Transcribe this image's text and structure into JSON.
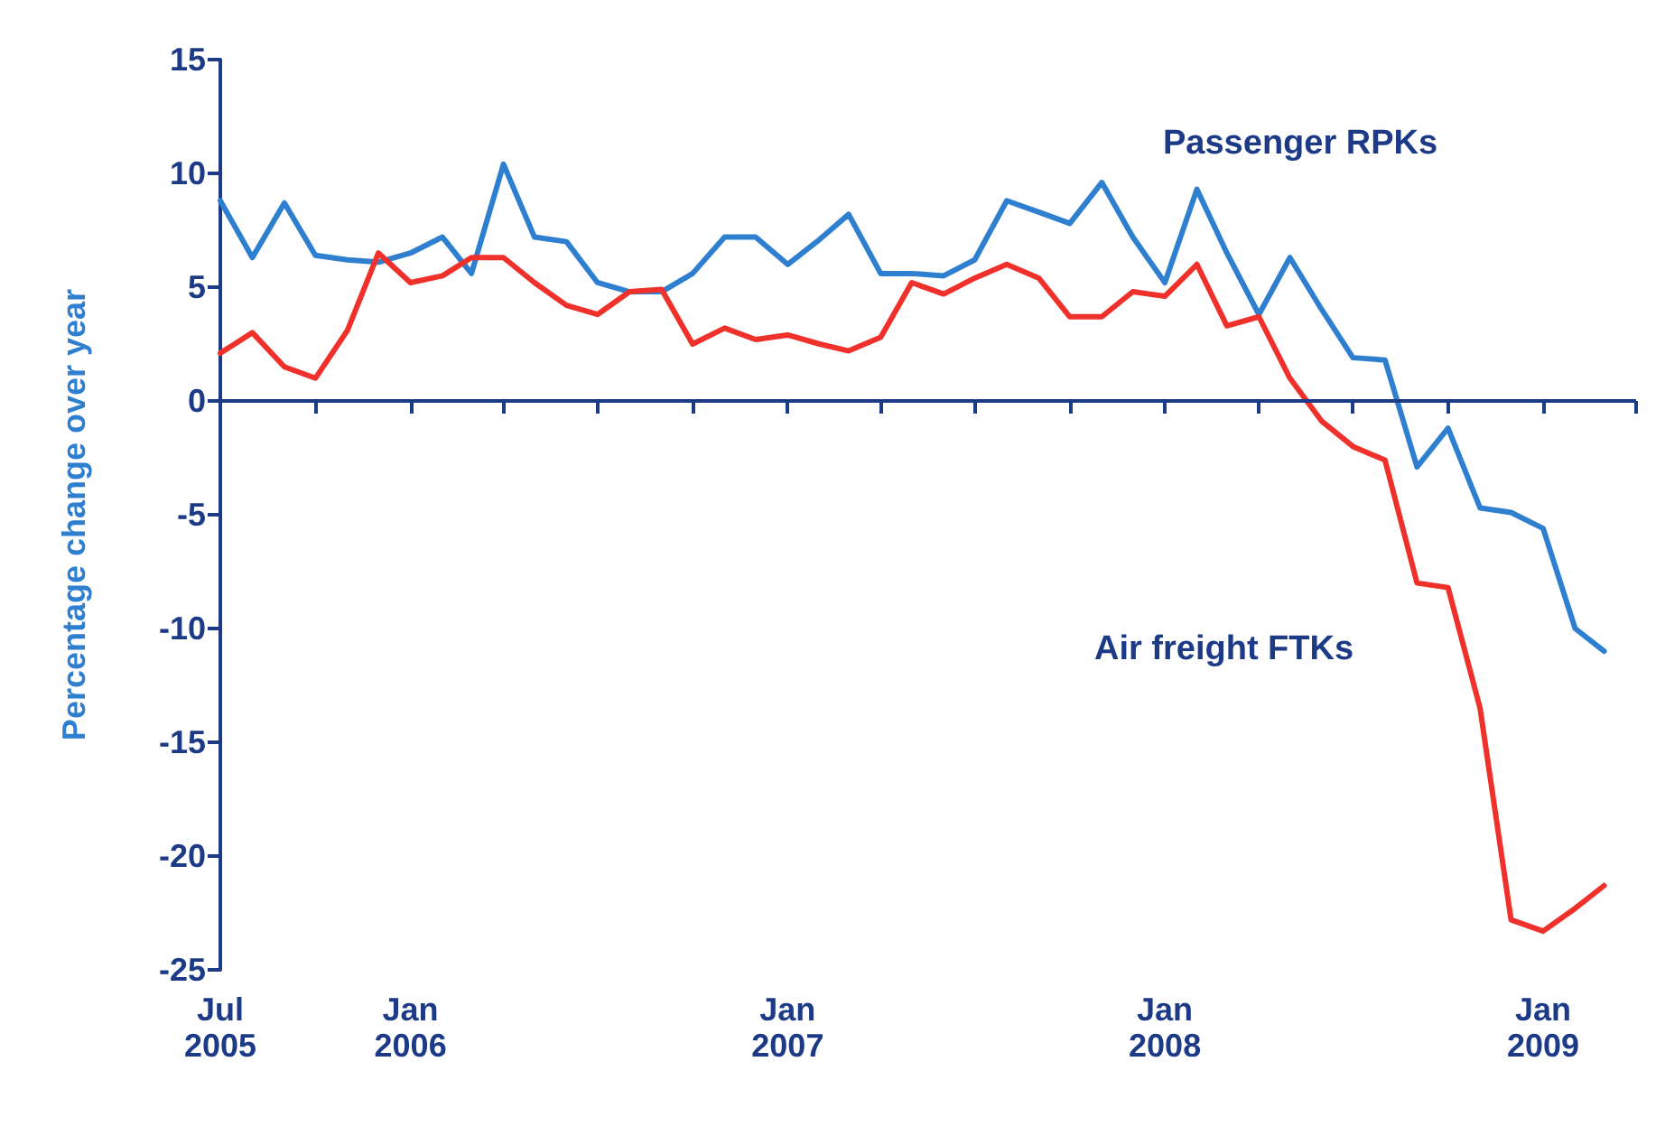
{
  "chart_data": {
    "type": "line",
    "ylabel": "Percentage change over year",
    "x": [
      "2005-07",
      "2005-08",
      "2005-09",
      "2005-10",
      "2005-11",
      "2005-12",
      "2006-01",
      "2006-02",
      "2006-03",
      "2006-04",
      "2006-05",
      "2006-06",
      "2006-07",
      "2006-08",
      "2006-09",
      "2006-10",
      "2006-11",
      "2006-12",
      "2007-01",
      "2007-02",
      "2007-03",
      "2007-04",
      "2007-05",
      "2007-06",
      "2007-07",
      "2007-08",
      "2007-09",
      "2007-10",
      "2007-11",
      "2007-12",
      "2008-01",
      "2008-02",
      "2008-03",
      "2008-04",
      "2008-05",
      "2008-06",
      "2008-07",
      "2008-08",
      "2008-09",
      "2008-10",
      "2008-11",
      "2008-12",
      "2009-01",
      "2009-02",
      "2009-03"
    ],
    "series": [
      {
        "name": "Passenger RPKs",
        "color": "#2f7fd0",
        "values": [
          8.8,
          6.3,
          8.7,
          6.4,
          6.2,
          6.1,
          6.5,
          7.2,
          5.6,
          10.4,
          7.2,
          7.0,
          5.2,
          4.8,
          4.8,
          5.6,
          7.2,
          7.2,
          6.0,
          7.1,
          8.2,
          5.6,
          5.6,
          5.5,
          6.2,
          8.8,
          8.3,
          7.8,
          9.6,
          7.2,
          5.2,
          9.3,
          6.5,
          3.8,
          6.3,
          4.0,
          1.9,
          1.8,
          -2.9,
          -1.2,
          -4.7,
          -4.9,
          -5.6,
          -10.0,
          -11.0
        ]
      },
      {
        "name": "Air freight FTKs",
        "color": "#f0302a",
        "values": [
          2.1,
          3.0,
          1.5,
          1.0,
          3.1,
          6.5,
          5.2,
          5.5,
          6.3,
          6.3,
          5.2,
          4.2,
          3.8,
          4.8,
          4.9,
          2.5,
          3.2,
          2.7,
          2.9,
          2.5,
          2.2,
          2.8,
          5.2,
          4.7,
          5.4,
          6.0,
          5.4,
          3.7,
          3.7,
          4.8,
          4.6,
          6.0,
          3.3,
          3.7,
          1.0,
          -0.9,
          -2.0,
          -2.6,
          -8.0,
          -8.2,
          -13.5,
          -22.8,
          -23.3,
          -22.3,
          -21.3
        ]
      }
    ],
    "xlim": [
      "2005-07",
      "2009-04"
    ],
    "xticks": [
      {
        "value": "2005-07",
        "label": "Jul\n2005"
      },
      {
        "value": "2005-10",
        "label": null
      },
      {
        "value": "2006-01",
        "label": "Jan\n2006"
      },
      {
        "value": "2006-04",
        "label": null
      },
      {
        "value": "2006-07",
        "label": null
      },
      {
        "value": "2006-10",
        "label": null
      },
      {
        "value": "2007-01",
        "label": "Jan\n2007"
      },
      {
        "value": "2007-04",
        "label": null
      },
      {
        "value": "2007-07",
        "label": null
      },
      {
        "value": "2007-10",
        "label": null
      },
      {
        "value": "2008-01",
        "label": "Jan\n2008"
      },
      {
        "value": "2008-04",
        "label": null
      },
      {
        "value": "2008-07",
        "label": null
      },
      {
        "value": "2008-10",
        "label": null
      },
      {
        "value": "2009-01",
        "label": "Jan\n2009"
      },
      {
        "value": "2009-04",
        "label": null
      }
    ],
    "ylim": [
      -25,
      15
    ],
    "yticks": [
      -25,
      -20,
      -15,
      -10,
      -5,
      0,
      5,
      10,
      15
    ],
    "ref_lines": [
      {
        "axis": "y",
        "value": 0,
        "color": "#1c3a86"
      }
    ],
    "grid": false,
    "legend": false,
    "marker": "none",
    "line_style": "solid"
  }
}
